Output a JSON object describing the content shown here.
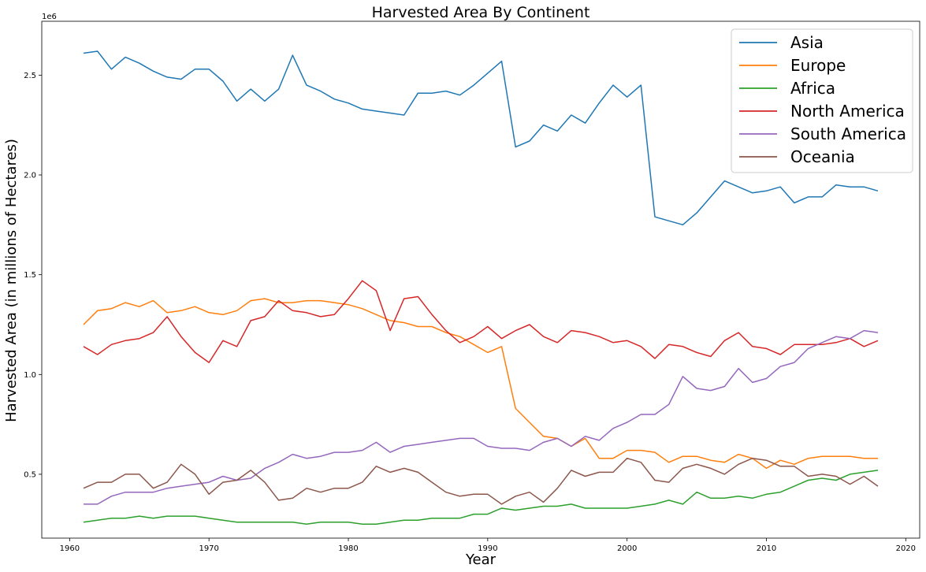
{
  "chart_data": {
    "type": "line",
    "title": "Harvested Area By Continent",
    "xlabel": "Year",
    "ylabel": "Harvested Area (in millions of Hectares)",
    "y_offset_text": "1e6",
    "xlim": [
      1958,
      2021
    ],
    "ylim": [
      0.18,
      2.77
    ],
    "x_ticks": [
      1960,
      1970,
      1980,
      1990,
      2000,
      2010,
      2020
    ],
    "x_tick_labels": [
      "1960",
      "1970",
      "1980",
      "1990",
      "2000",
      "2010",
      "2020"
    ],
    "y_ticks": [
      0.5,
      1.0,
      1.5,
      2.0,
      2.5
    ],
    "y_tick_labels": [
      "0.5",
      "1.0",
      "1.5",
      "2.0",
      "2.5"
    ],
    "grid": false,
    "legend_position": "top-right",
    "x_start": 1961,
    "series": [
      {
        "name": "Asia",
        "color": "#1f77b4",
        "values": [
          2.61,
          2.62,
          2.53,
          2.59,
          2.56,
          2.52,
          2.49,
          2.48,
          2.53,
          2.53,
          2.47,
          2.37,
          2.43,
          2.37,
          2.43,
          2.6,
          2.45,
          2.42,
          2.38,
          2.36,
          2.33,
          2.32,
          2.31,
          2.3,
          2.41,
          2.41,
          2.42,
          2.4,
          2.45,
          2.51,
          2.57,
          2.14,
          2.17,
          2.25,
          2.22,
          2.3,
          2.26,
          2.36,
          2.45,
          2.39,
          2.45,
          1.79,
          1.77,
          1.75,
          1.81,
          1.89,
          1.97,
          1.94,
          1.91,
          1.92,
          1.94,
          1.86,
          1.89,
          1.89,
          1.95,
          1.94,
          1.94,
          1.92
        ]
      },
      {
        "name": "Europe",
        "color": "#ff7f0e",
        "values": [
          1.25,
          1.32,
          1.33,
          1.36,
          1.34,
          1.37,
          1.31,
          1.32,
          1.34,
          1.31,
          1.3,
          1.32,
          1.37,
          1.38,
          1.36,
          1.36,
          1.37,
          1.37,
          1.36,
          1.35,
          1.33,
          1.3,
          1.27,
          1.26,
          1.24,
          1.24,
          1.21,
          1.19,
          1.15,
          1.11,
          1.14,
          0.83,
          0.76,
          0.69,
          0.68,
          0.64,
          0.68,
          0.58,
          0.58,
          0.62,
          0.62,
          0.61,
          0.56,
          0.59,
          0.59,
          0.57,
          0.56,
          0.6,
          0.58,
          0.53,
          0.57,
          0.55,
          0.58,
          0.59,
          0.59,
          0.59,
          0.58,
          0.58
        ]
      },
      {
        "name": "Africa",
        "color": "#2ca02c",
        "values": [
          0.26,
          0.27,
          0.28,
          0.28,
          0.29,
          0.28,
          0.29,
          0.29,
          0.29,
          0.28,
          0.27,
          0.26,
          0.26,
          0.26,
          0.26,
          0.26,
          0.25,
          0.26,
          0.26,
          0.26,
          0.25,
          0.25,
          0.26,
          0.27,
          0.27,
          0.28,
          0.28,
          0.28,
          0.3,
          0.3,
          0.33,
          0.32,
          0.33,
          0.34,
          0.34,
          0.35,
          0.33,
          0.33,
          0.33,
          0.33,
          0.34,
          0.35,
          0.37,
          0.35,
          0.41,
          0.38,
          0.38,
          0.39,
          0.38,
          0.4,
          0.41,
          0.44,
          0.47,
          0.48,
          0.47,
          0.5,
          0.51,
          0.52
        ]
      },
      {
        "name": "North America",
        "color": "#d62728",
        "values": [
          1.14,
          1.1,
          1.15,
          1.17,
          1.18,
          1.21,
          1.29,
          1.19,
          1.11,
          1.06,
          1.17,
          1.14,
          1.27,
          1.29,
          1.37,
          1.32,
          1.31,
          1.29,
          1.3,
          1.38,
          1.47,
          1.42,
          1.22,
          1.38,
          1.39,
          1.3,
          1.22,
          1.16,
          1.19,
          1.24,
          1.18,
          1.22,
          1.25,
          1.19,
          1.16,
          1.22,
          1.21,
          1.19,
          1.16,
          1.17,
          1.14,
          1.08,
          1.15,
          1.14,
          1.11,
          1.09,
          1.17,
          1.21,
          1.14,
          1.13,
          1.1,
          1.15,
          1.15,
          1.15,
          1.16,
          1.18,
          1.14,
          1.17
        ]
      },
      {
        "name": "South America",
        "color": "#9467bd",
        "values": [
          0.35,
          0.35,
          0.39,
          0.41,
          0.41,
          0.41,
          0.43,
          0.44,
          0.45,
          0.46,
          0.49,
          0.47,
          0.48,
          0.53,
          0.56,
          0.6,
          0.58,
          0.59,
          0.61,
          0.61,
          0.62,
          0.66,
          0.61,
          0.64,
          0.65,
          0.66,
          0.67,
          0.68,
          0.68,
          0.64,
          0.63,
          0.63,
          0.62,
          0.66,
          0.68,
          0.64,
          0.69,
          0.67,
          0.73,
          0.76,
          0.8,
          0.8,
          0.85,
          0.99,
          0.93,
          0.92,
          0.94,
          1.03,
          0.96,
          0.98,
          1.04,
          1.06,
          1.13,
          1.16,
          1.19,
          1.18,
          1.22,
          1.21
        ]
      },
      {
        "name": "Oceania",
        "color": "#8c564b",
        "values": [
          0.43,
          0.46,
          0.46,
          0.5,
          0.5,
          0.43,
          0.46,
          0.55,
          0.5,
          0.4,
          0.46,
          0.47,
          0.52,
          0.46,
          0.37,
          0.38,
          0.43,
          0.41,
          0.43,
          0.43,
          0.46,
          0.54,
          0.51,
          0.53,
          0.51,
          0.46,
          0.41,
          0.39,
          0.4,
          0.4,
          0.35,
          0.39,
          0.41,
          0.36,
          0.43,
          0.52,
          0.49,
          0.51,
          0.51,
          0.58,
          0.56,
          0.47,
          0.46,
          0.53,
          0.55,
          0.53,
          0.5,
          0.55,
          0.58,
          0.57,
          0.54,
          0.54,
          0.49,
          0.5,
          0.49,
          0.45,
          0.49,
          0.44
        ]
      }
    ]
  }
}
